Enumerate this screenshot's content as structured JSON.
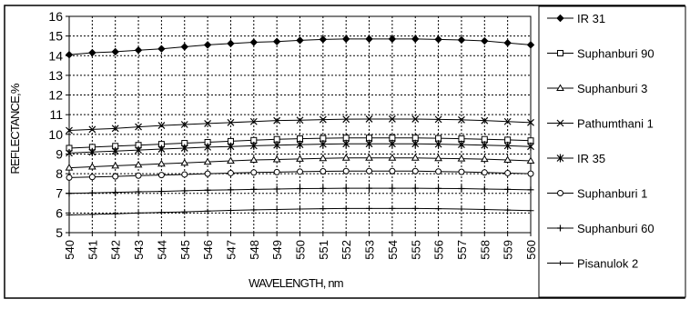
{
  "chart_data": {
    "type": "line",
    "title": "",
    "xlabel": "WAVELENGTH, nm",
    "ylabel": "REFLECTANCE,%",
    "x": [
      540,
      541,
      542,
      543,
      544,
      545,
      546,
      547,
      548,
      549,
      550,
      551,
      552,
      553,
      554,
      555,
      556,
      557,
      558,
      559,
      560
    ],
    "xlim": [
      540,
      560
    ],
    "ylim": [
      5,
      16
    ],
    "y_ticks": [
      5,
      6,
      7,
      8,
      9,
      10,
      11,
      12,
      13,
      14,
      15,
      16
    ],
    "grid": true,
    "legend_position": "right",
    "series": [
      {
        "name": "IR 31",
        "marker": "diamond-filled",
        "values": [
          14.05,
          14.15,
          14.2,
          14.28,
          14.35,
          14.45,
          14.55,
          14.62,
          14.68,
          14.72,
          14.78,
          14.83,
          14.85,
          14.85,
          14.85,
          14.85,
          14.83,
          14.8,
          14.75,
          14.65,
          14.55
        ]
      },
      {
        "name": "Suphanburi 90",
        "marker": "square-open",
        "values": [
          9.3,
          9.35,
          9.4,
          9.45,
          9.5,
          9.55,
          9.6,
          9.65,
          9.7,
          9.75,
          9.78,
          9.8,
          9.82,
          9.82,
          9.82,
          9.82,
          9.8,
          9.78,
          9.75,
          9.72,
          9.68
        ]
      },
      {
        "name": "Suphanburi 3",
        "marker": "triangle-open",
        "values": [
          8.3,
          8.35,
          8.4,
          8.45,
          8.5,
          8.55,
          8.6,
          8.65,
          8.7,
          8.72,
          8.75,
          8.78,
          8.8,
          8.8,
          8.8,
          8.8,
          8.78,
          8.76,
          8.74,
          8.7,
          8.65
        ]
      },
      {
        "name": "Pathumthani 1",
        "marker": "x",
        "values": [
          10.2,
          10.25,
          10.3,
          10.38,
          10.45,
          10.5,
          10.55,
          10.6,
          10.65,
          10.7,
          10.72,
          10.75,
          10.77,
          10.78,
          10.78,
          10.78,
          10.76,
          10.74,
          10.7,
          10.65,
          10.6
        ]
      },
      {
        "name": "IR 35",
        "marker": "star",
        "values": [
          9.05,
          9.1,
          9.15,
          9.2,
          9.25,
          9.3,
          9.35,
          9.38,
          9.42,
          9.45,
          9.48,
          9.5,
          9.52,
          9.52,
          9.52,
          9.52,
          9.5,
          9.48,
          9.45,
          9.42,
          9.38
        ]
      },
      {
        "name": "Suphanburi 1",
        "marker": "circle-open",
        "values": [
          7.8,
          7.83,
          7.86,
          7.9,
          7.93,
          7.96,
          8.0,
          8.03,
          8.06,
          8.08,
          8.1,
          8.12,
          8.13,
          8.13,
          8.13,
          8.13,
          8.11,
          8.09,
          8.06,
          8.03,
          8.0
        ]
      },
      {
        "name": "Suphanburi 60",
        "marker": "plus",
        "values": [
          7.0,
          7.02,
          7.05,
          7.08,
          7.1,
          7.13,
          7.16,
          7.18,
          7.2,
          7.22,
          7.24,
          7.25,
          7.26,
          7.26,
          7.26,
          7.26,
          7.25,
          7.24,
          7.22,
          7.2,
          7.18
        ]
      },
      {
        "name": "Pisanulok 2",
        "marker": "dash",
        "values": [
          5.9,
          5.93,
          5.96,
          6.0,
          6.03,
          6.06,
          6.1,
          6.13,
          6.16,
          6.18,
          6.2,
          6.22,
          6.23,
          6.23,
          6.23,
          6.23,
          6.22,
          6.2,
          6.18,
          6.15,
          6.12
        ]
      }
    ]
  }
}
